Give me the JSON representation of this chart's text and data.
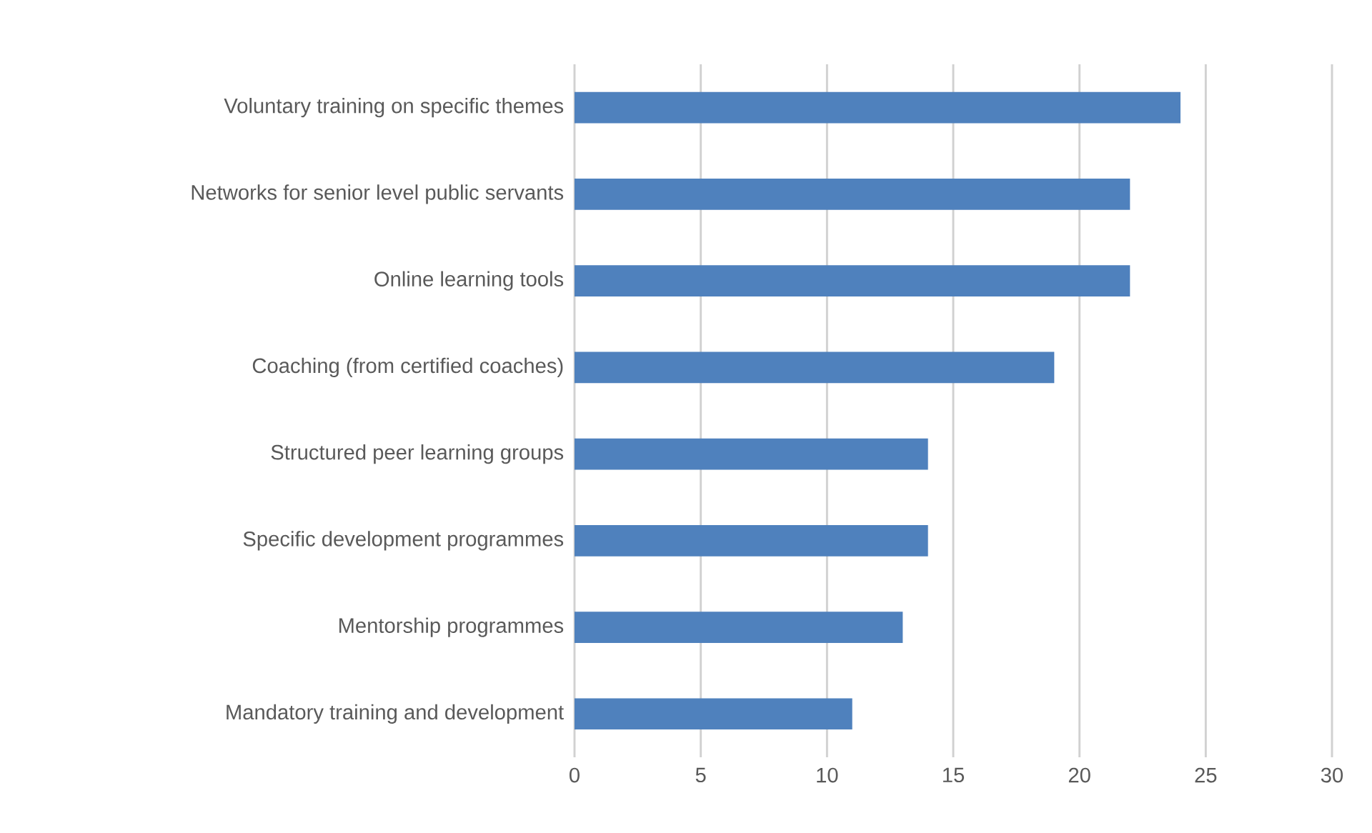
{
  "chart_data": {
    "type": "bar",
    "orientation": "horizontal",
    "categories": [
      "Voluntary training on specific themes",
      "Networks for senior level public servants",
      "Online learning tools",
      "Coaching (from certified coaches)",
      "Structured peer learning groups",
      "Specific development programmes",
      "Mentorship programmes",
      "Mandatory training and development"
    ],
    "values": [
      24,
      22,
      22,
      19,
      14,
      14,
      13,
      11
    ],
    "color": "#4f81bd",
    "xlim": [
      0,
      30
    ],
    "xticks": [
      0,
      5,
      10,
      15,
      20,
      25,
      30
    ],
    "grid": "x"
  }
}
